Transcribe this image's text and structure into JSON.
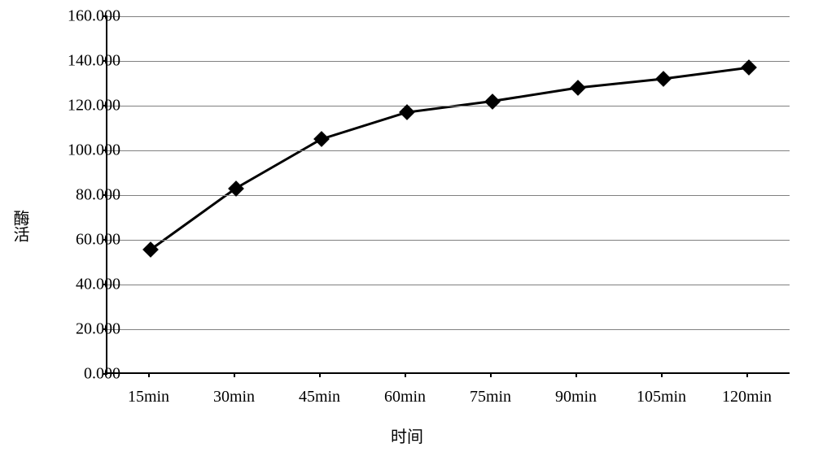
{
  "chart": {
    "type": "line",
    "y_axis_label": "酶活",
    "x_axis_label": "时间",
    "x_categories": [
      "15min",
      "30min",
      "45min",
      "60min",
      "75min",
      "90min",
      "105min",
      "120min"
    ],
    "y_values": [
      55.5,
      83.0,
      105.0,
      117.0,
      122.0,
      128.0,
      132.0,
      137.0
    ],
    "y_ticks": [
      0.0,
      20.0,
      40.0,
      60.0,
      80.0,
      100.0,
      120.0,
      140.0,
      160.0
    ],
    "y_tick_labels": [
      "0.000",
      "20.000",
      "40.000",
      "60.000",
      "80.000",
      "100.000",
      "120.000",
      "140.000",
      "160.000"
    ],
    "ylim": [
      0.0,
      160.0
    ],
    "line_color": "#000000",
    "line_width": 3,
    "marker_style": "diamond",
    "marker_size": 14,
    "marker_color": "#000000",
    "grid_color": "#808080",
    "background_color": "#ffffff",
    "axis_color": "#000000",
    "label_fontsize": 20,
    "tick_fontsize": 20,
    "font_family": "SimSun"
  }
}
